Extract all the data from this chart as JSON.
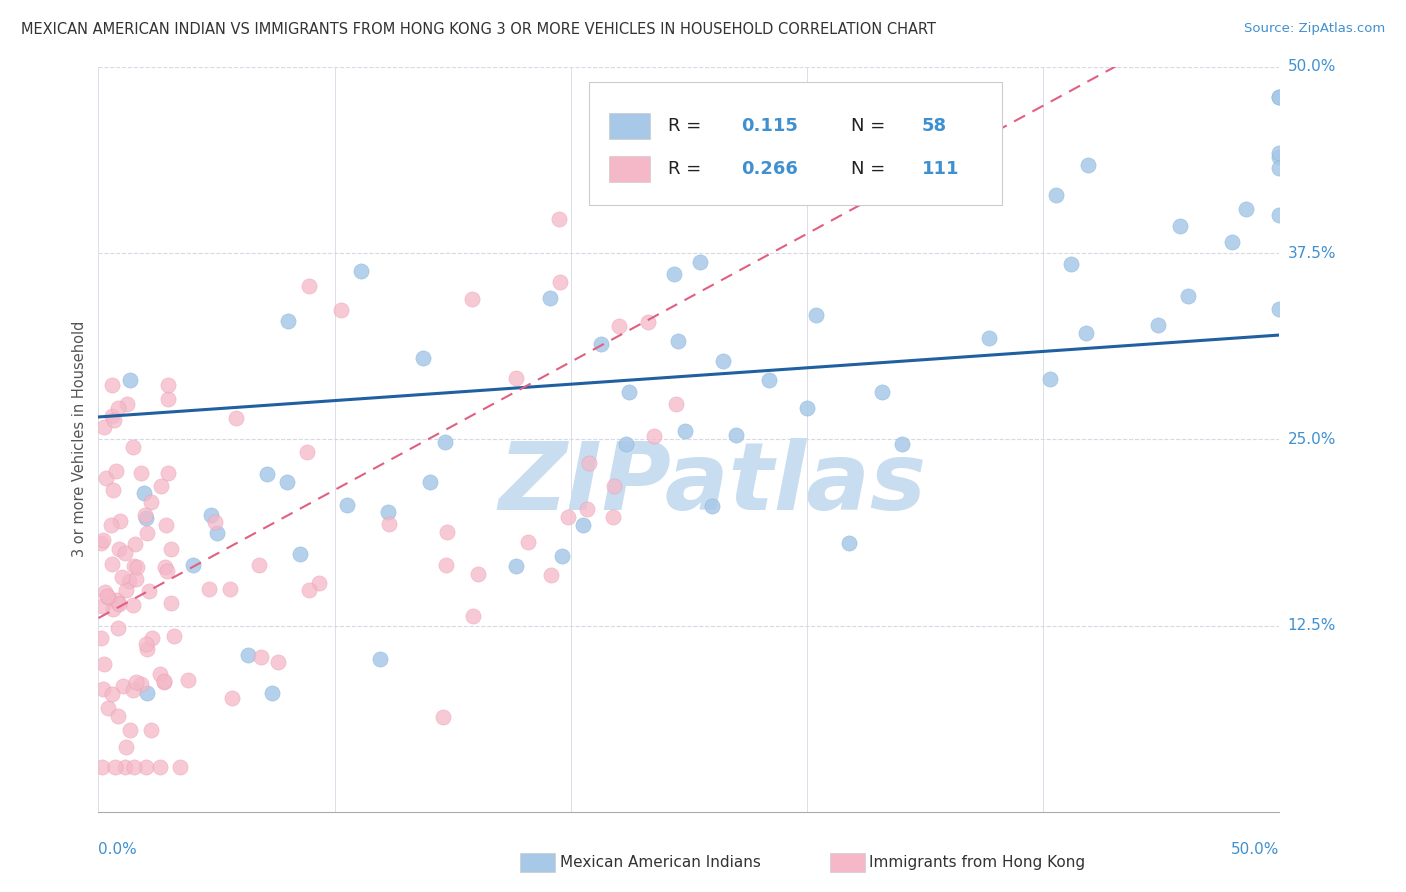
{
  "title": "MEXICAN AMERICAN INDIAN VS IMMIGRANTS FROM HONG KONG 3 OR MORE VEHICLES IN HOUSEHOLD CORRELATION CHART",
  "source": "Source: ZipAtlas.com",
  "ylabel": "3 or more Vehicles in Household",
  "xlim": [
    0,
    0.5
  ],
  "ylim": [
    0,
    0.5
  ],
  "blue_R": 0.115,
  "blue_N": 58,
  "pink_R": 0.266,
  "pink_N": 111,
  "blue_color": "#a8c8e8",
  "blue_edge_color": "#7aafd4",
  "pink_color": "#f4b8c8",
  "pink_edge_color": "#e890a8",
  "blue_line_color": "#2060a0",
  "pink_line_color": "#e06080",
  "watermark": "ZIPatlas",
  "watermark_color": "#c8ddf0",
  "legend_label_blue": "Mexican American Indians",
  "legend_label_pink": "Immigrants from Hong Kong",
  "title_color": "#333333",
  "source_color": "#4090d0",
  "axis_label_color": "#4090d0",
  "ylabel_color": "#555555",
  "bottom_legend_color": "#333333",
  "grid_color": "#d8d8e8",
  "legend_box_color": "#cccccc"
}
